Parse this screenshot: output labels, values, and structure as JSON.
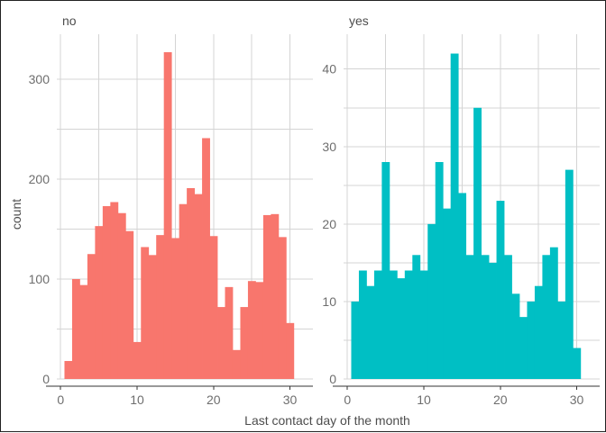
{
  "chart_data": {
    "type": "bar",
    "subtype": "histogram",
    "xlabel": "Last contact day of the month",
    "ylabel": "count",
    "x_bin_width": 1,
    "x_ticks": [
      0,
      10,
      20,
      30
    ],
    "xlim": [
      -0.5,
      33
    ],
    "grid": true,
    "legend": "none",
    "facets": [
      {
        "name": "no",
        "color": "#f8766d",
        "ylim": [
          0,
          345
        ],
        "y_ticks": [
          0,
          100,
          200,
          300
        ],
        "bins": [
          1,
          2,
          3,
          4,
          5,
          6,
          7,
          8,
          9,
          10,
          11,
          12,
          13,
          14,
          15,
          16,
          17,
          18,
          19,
          20,
          21,
          22,
          23,
          24,
          25,
          26,
          27,
          28,
          29,
          30,
          31
        ],
        "values": [
          18,
          100,
          94,
          125,
          153,
          173,
          177,
          166,
          148,
          37,
          132,
          124,
          144,
          327,
          141,
          175,
          191,
          185,
          241,
          143,
          72,
          92,
          29,
          72,
          98,
          97,
          164,
          165,
          142,
          56,
          0
        ]
      },
      {
        "name": "yes",
        "color": "#00bfc4",
        "ylim": [
          0,
          44.5
        ],
        "y_ticks": [
          0,
          10,
          20,
          30,
          40
        ],
        "bins": [
          1,
          2,
          3,
          4,
          5,
          6,
          7,
          8,
          9,
          10,
          11,
          12,
          13,
          14,
          15,
          16,
          17,
          18,
          19,
          20,
          21,
          22,
          23,
          24,
          25,
          26,
          27,
          28,
          29,
          30,
          31
        ],
        "values": [
          10,
          14,
          12,
          14,
          28,
          14,
          13,
          14,
          16,
          14,
          20,
          28,
          22,
          42,
          24,
          16,
          35,
          16,
          15,
          23,
          16,
          11,
          8,
          10,
          12,
          16,
          17,
          10,
          27,
          4,
          0
        ]
      }
    ]
  }
}
